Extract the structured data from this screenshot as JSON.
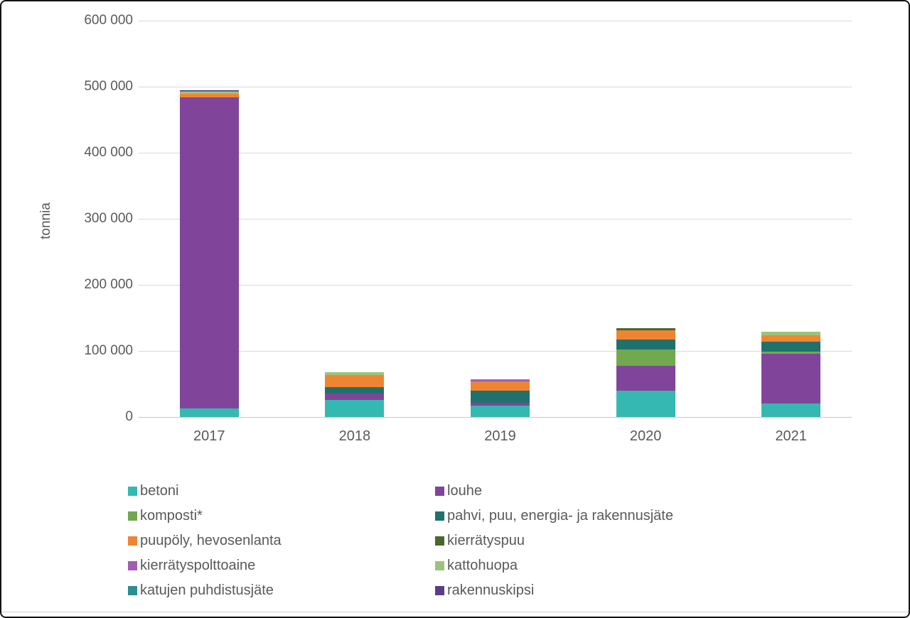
{
  "chart_data": {
    "type": "bar",
    "stacked": true,
    "title": "",
    "xlabel": "",
    "ylabel": "tonnia",
    "ylim": [
      0,
      600000
    ],
    "ytick_step": 100000,
    "ytick_labels": [
      "0",
      "100 000",
      "200 000",
      "300 000",
      "400 000",
      "500 000",
      "600 000"
    ],
    "grid": true,
    "legend_position": "bottom",
    "legend_columns": 2,
    "categories": [
      "2017",
      "2018",
      "2019",
      "2020",
      "2021"
    ],
    "series": [
      {
        "name": "betoni",
        "color": "#35b8b1",
        "values": [
          13000,
          26000,
          17000,
          40000,
          20000
        ]
      },
      {
        "name": "louhe",
        "color": "#80459a",
        "values": [
          471000,
          10000,
          4000,
          37000,
          76000
        ]
      },
      {
        "name": "komposti*",
        "color": "#72a94f",
        "values": [
          0,
          0,
          0,
          25000,
          3000
        ]
      },
      {
        "name": "pahvi, puu, energia- ja rakennusjäte",
        "color": "#20716c",
        "values": [
          0,
          9000,
          19000,
          15000,
          15000
        ]
      },
      {
        "name": "puupöly, hevosenlanta",
        "color": "#ef8532",
        "values": [
          5000,
          18000,
          14000,
          14000,
          10000
        ]
      },
      {
        "name": "kierrätyspuu",
        "color": "#49682c",
        "values": [
          0,
          0,
          0,
          3000,
          0
        ]
      },
      {
        "name": "kierrätyspolttoaine",
        "color": "#a05fb5",
        "values": [
          0,
          0,
          3000,
          0,
          0
        ]
      },
      {
        "name": "kattohuopa",
        "color": "#9dc379",
        "values": [
          4000,
          5000,
          0,
          0,
          5000
        ]
      },
      {
        "name": "katujen puhdistusjäte",
        "color": "#2b8e93",
        "values": [
          1000,
          0,
          0,
          0,
          0
        ]
      },
      {
        "name": "rakennuskipsi",
        "color": "#5e3d87",
        "values": [
          1000,
          0,
          0,
          0,
          0
        ]
      }
    ],
    "legend_order": [
      "betoni",
      "louhe",
      "komposti*",
      "pahvi, puu, energia- ja rakennusjäte",
      "puupöly, hevosenlanta",
      "kierrätyspuu",
      "kierrätyspolttoaine",
      "kattohuopa",
      "katujen puhdistusjäte",
      "rakennuskipsi"
    ]
  },
  "colors": {
    "grid": "#d9d9d9",
    "axis_text": "#595959",
    "background": "#ffffff",
    "frame_border": "#141414"
  }
}
